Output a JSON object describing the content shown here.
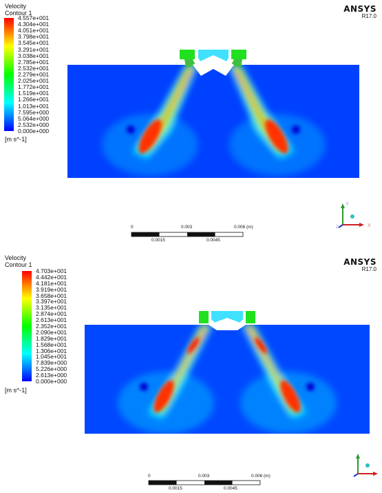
{
  "panels": [
    {
      "legend_title": [
        "Velocity",
        "Contour 1"
      ],
      "legend_ticks": [
        "4.557e+001",
        "4.304e+001",
        "4.051e+001",
        "3.798e+001",
        "3.545e+001",
        "3.291e+001",
        "3.038e+001",
        "2.785e+001",
        "2.532e+001",
        "2.279e+001",
        "2.025e+001",
        "1.772e+001",
        "1.519e+001",
        "1.266e+001",
        "1.013e+001",
        "7.595e+000",
        "5.064e+000",
        "2.532e+000",
        "0.000e+000"
      ],
      "units": "[m s^-1]",
      "brand": "ANSYS",
      "version": "R17.0",
      "scale_ticks": [
        "0",
        "0.003",
        "0.006",
        "(m)"
      ],
      "scale_sub_ticks": [
        "0.0015",
        "0.0045"
      ],
      "axes": {
        "y": "Y",
        "x": "X",
        "z": "Z"
      }
    },
    {
      "legend_title": [
        "Velocity",
        "Contour 1"
      ],
      "legend_ticks": [
        "4.703e+001",
        "4.442e+001",
        "4.181e+001",
        "3.919e+001",
        "3.658e+001",
        "3.397e+001",
        "3.135e+001",
        "2.874e+001",
        "2.613e+001",
        "2.352e+001",
        "2.090e+001",
        "1.829e+001",
        "1.568e+001",
        "1.306e+001",
        "1.045e+001",
        "7.839e+000",
        "5.226e+000",
        "2.613e+000",
        "0.000e+000"
      ],
      "units": "[m s^-1]",
      "brand": "ANSYS",
      "version": "R17.0",
      "scale_ticks": [
        "0",
        "0.003",
        "0.006",
        "(m)"
      ],
      "scale_sub_ticks": [
        "0.0015",
        "0.0045"
      ],
      "axes": {
        "y": "",
        "x": "",
        "z": ""
      }
    }
  ],
  "colormap": [
    "#0000ff",
    "#0040ff",
    "#0080ff",
    "#00bfff",
    "#00ffff",
    "#00ffbf",
    "#00ff80",
    "#00ff40",
    "#00ff00",
    "#40ff00",
    "#80ff00",
    "#bfff00",
    "#ffff00",
    "#ffbf00",
    "#ff8000",
    "#ff4000",
    "#ff0000"
  ]
}
